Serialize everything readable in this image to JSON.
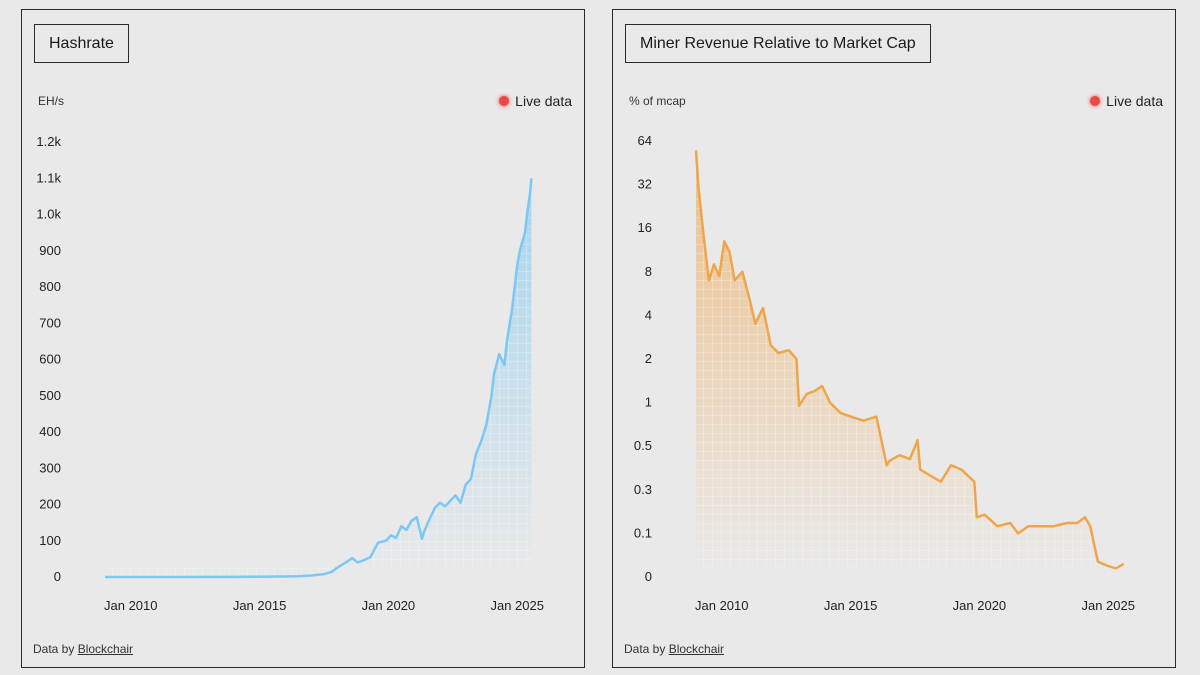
{
  "colors": {
    "background": "#e9e9e9",
    "hashrate": "#7cc8f2",
    "revenue": "#f0a54a",
    "live_dot": "#e84848"
  },
  "credit_prefix": "Data by",
  "credit_link": "Blockchair",
  "live_label": "Live data",
  "chart_data": [
    {
      "type": "area",
      "title": "Hashrate",
      "ylabel": "EH/s",
      "ylim": [
        0,
        1200
      ],
      "yticks": [
        0,
        100,
        200,
        300,
        400,
        500,
        600,
        700,
        800,
        900,
        1000,
        1100,
        1200
      ],
      "ytick_labels": [
        "0",
        "100",
        "200",
        "300",
        "400",
        "500",
        "600",
        "700",
        "800",
        "900",
        "1.0k",
        "1.1k",
        "1.2k"
      ],
      "xlim": [
        2009.0,
        2026.0
      ],
      "xticks": [
        2010,
        2015,
        2020,
        2025
      ],
      "xtick_labels": [
        "Jan 2010",
        "Jan 2015",
        "Jan 2020",
        "Jan 2025"
      ],
      "series": [
        {
          "name": "Hashrate",
          "x": [
            2009.0,
            2012.0,
            2014.0,
            2015.5,
            2016.5,
            2017.0,
            2017.5,
            2017.8,
            2018.0,
            2018.3,
            2018.6,
            2018.8,
            2019.0,
            2019.3,
            2019.6,
            2019.9,
            2020.1,
            2020.3,
            2020.5,
            2020.7,
            2020.9,
            2021.1,
            2021.3,
            2021.4,
            2021.6,
            2021.8,
            2022.0,
            2022.2,
            2022.4,
            2022.6,
            2022.8,
            2023.0,
            2023.2,
            2023.4,
            2023.6,
            2023.8,
            2024.0,
            2024.1,
            2024.3,
            2024.5,
            2024.6,
            2024.8,
            2024.9,
            2025.0,
            2025.1,
            2025.3,
            2025.4,
            2025.5,
            2025.55
          ],
          "y": [
            0,
            0,
            0.3,
            1,
            2,
            4,
            8,
            14,
            25,
            38,
            52,
            40,
            45,
            55,
            95,
            100,
            115,
            108,
            140,
            130,
            155,
            165,
            105,
            128,
            160,
            190,
            205,
            195,
            210,
            225,
            205,
            255,
            270,
            340,
            375,
            420,
            500,
            560,
            615,
            585,
            650,
            740,
            800,
            860,
            900,
            950,
            1010,
            1060,
            1100
          ]
        }
      ]
    },
    {
      "type": "area",
      "title": "Miner Revenue Relative to Market Cap",
      "ylabel": "% of mcap",
      "yscale": "log2",
      "yticks": [
        0,
        0.1,
        0.3,
        0.5,
        1,
        2,
        4,
        8,
        16,
        32,
        64
      ],
      "ytick_labels": [
        "0",
        "0.1",
        "0.3",
        "0.5",
        "1",
        "2",
        "4",
        "8",
        "16",
        "32",
        "64"
      ],
      "xlim": [
        2009.0,
        2026.0
      ],
      "xticks": [
        2010,
        2015,
        2020,
        2025
      ],
      "xtick_labels": [
        "Jan 2010",
        "Jan 2015",
        "Jan 2020",
        "Jan 2025"
      ],
      "series": [
        {
          "name": "Miner revenue % of market cap",
          "x": [
            2009.0,
            2009.1,
            2009.3,
            2009.5,
            2009.7,
            2009.9,
            2010.1,
            2010.3,
            2010.5,
            2010.8,
            2011.1,
            2011.3,
            2011.6,
            2011.9,
            2012.2,
            2012.6,
            2012.9,
            2013.0,
            2013.3,
            2013.6,
            2013.9,
            2014.2,
            2014.6,
            2015.0,
            2015.5,
            2016.0,
            2016.4,
            2016.5,
            2016.9,
            2017.3,
            2017.6,
            2017.7,
            2018.0,
            2018.5,
            2018.9,
            2019.3,
            2019.8,
            2019.9,
            2020.2,
            2020.7,
            2021.2,
            2021.5,
            2021.9,
            2022.4,
            2022.9,
            2023.4,
            2023.8,
            2024.1,
            2024.3,
            2024.6,
            2025.0,
            2025.3,
            2025.6
          ],
          "y": [
            55,
            30,
            14,
            7,
            9,
            7.5,
            13,
            11,
            7,
            8,
            5,
            3.5,
            4.5,
            2.5,
            2.2,
            2.3,
            2.0,
            0.95,
            1.15,
            1.2,
            1.3,
            1.0,
            0.85,
            0.8,
            0.75,
            0.8,
            0.4,
            0.42,
            0.45,
            0.43,
            0.55,
            0.38,
            0.36,
            0.33,
            0.4,
            0.38,
            0.33,
            0.15,
            0.16,
            0.12,
            0.13,
            0.1,
            0.12,
            0.12,
            0.12,
            0.13,
            0.13,
            0.15,
            0.12,
            0.035,
            0.025,
            0.02,
            0.03
          ]
        }
      ]
    }
  ]
}
